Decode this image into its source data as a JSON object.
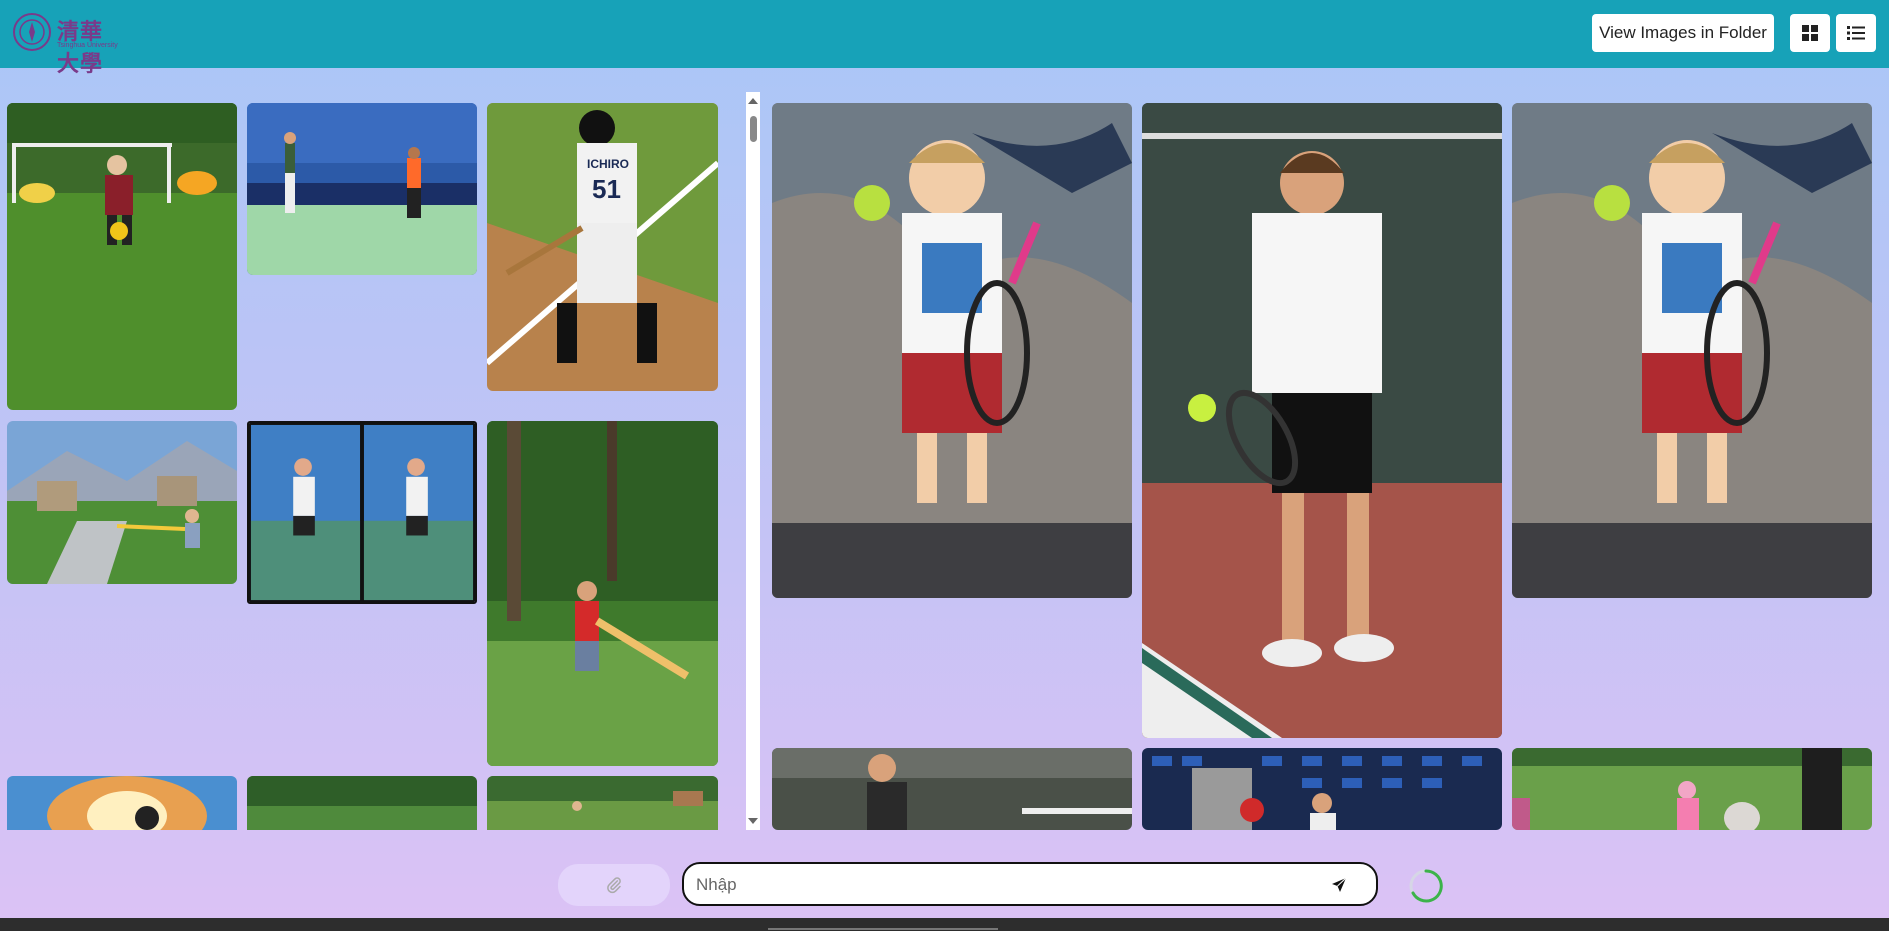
{
  "header": {
    "logo_text": "清華大學",
    "logo_subtext": "Tsinghua University",
    "view_folder_label": "View Images in Folder",
    "grid_view_icon": "grid-icon",
    "list_view_icon": "list-icon",
    "bar_color": "#17a2b8"
  },
  "left_gallery": {
    "images": [
      {
        "id": "soccer-kids"
      },
      {
        "id": "tennis-stadium"
      },
      {
        "id": "baseball-batter-51",
        "jersey_text": "ICHIRO",
        "jersey_number": "51"
      },
      {
        "id": "kid-bat-mountains"
      },
      {
        "id": "tennis-girl-sequence"
      },
      {
        "id": "boy-swing-bat-grass"
      },
      {
        "id": "fire-bg-player"
      },
      {
        "id": "trees-field"
      },
      {
        "id": "park-field-person"
      }
    ]
  },
  "right_gallery": {
    "images": [
      {
        "id": "toddler-tennis-1"
      },
      {
        "id": "teen-tennis-forehand"
      },
      {
        "id": "toddler-tennis-2"
      },
      {
        "id": "girl-tennis-court"
      },
      {
        "id": "stadium-blue-seats"
      },
      {
        "id": "park-kids-pink"
      }
    ]
  },
  "chat": {
    "attach_icon": "paperclip-icon",
    "input_placeholder": "Nhập",
    "send_icon": "send-icon",
    "status_icon": "loading-spinner-icon"
  }
}
